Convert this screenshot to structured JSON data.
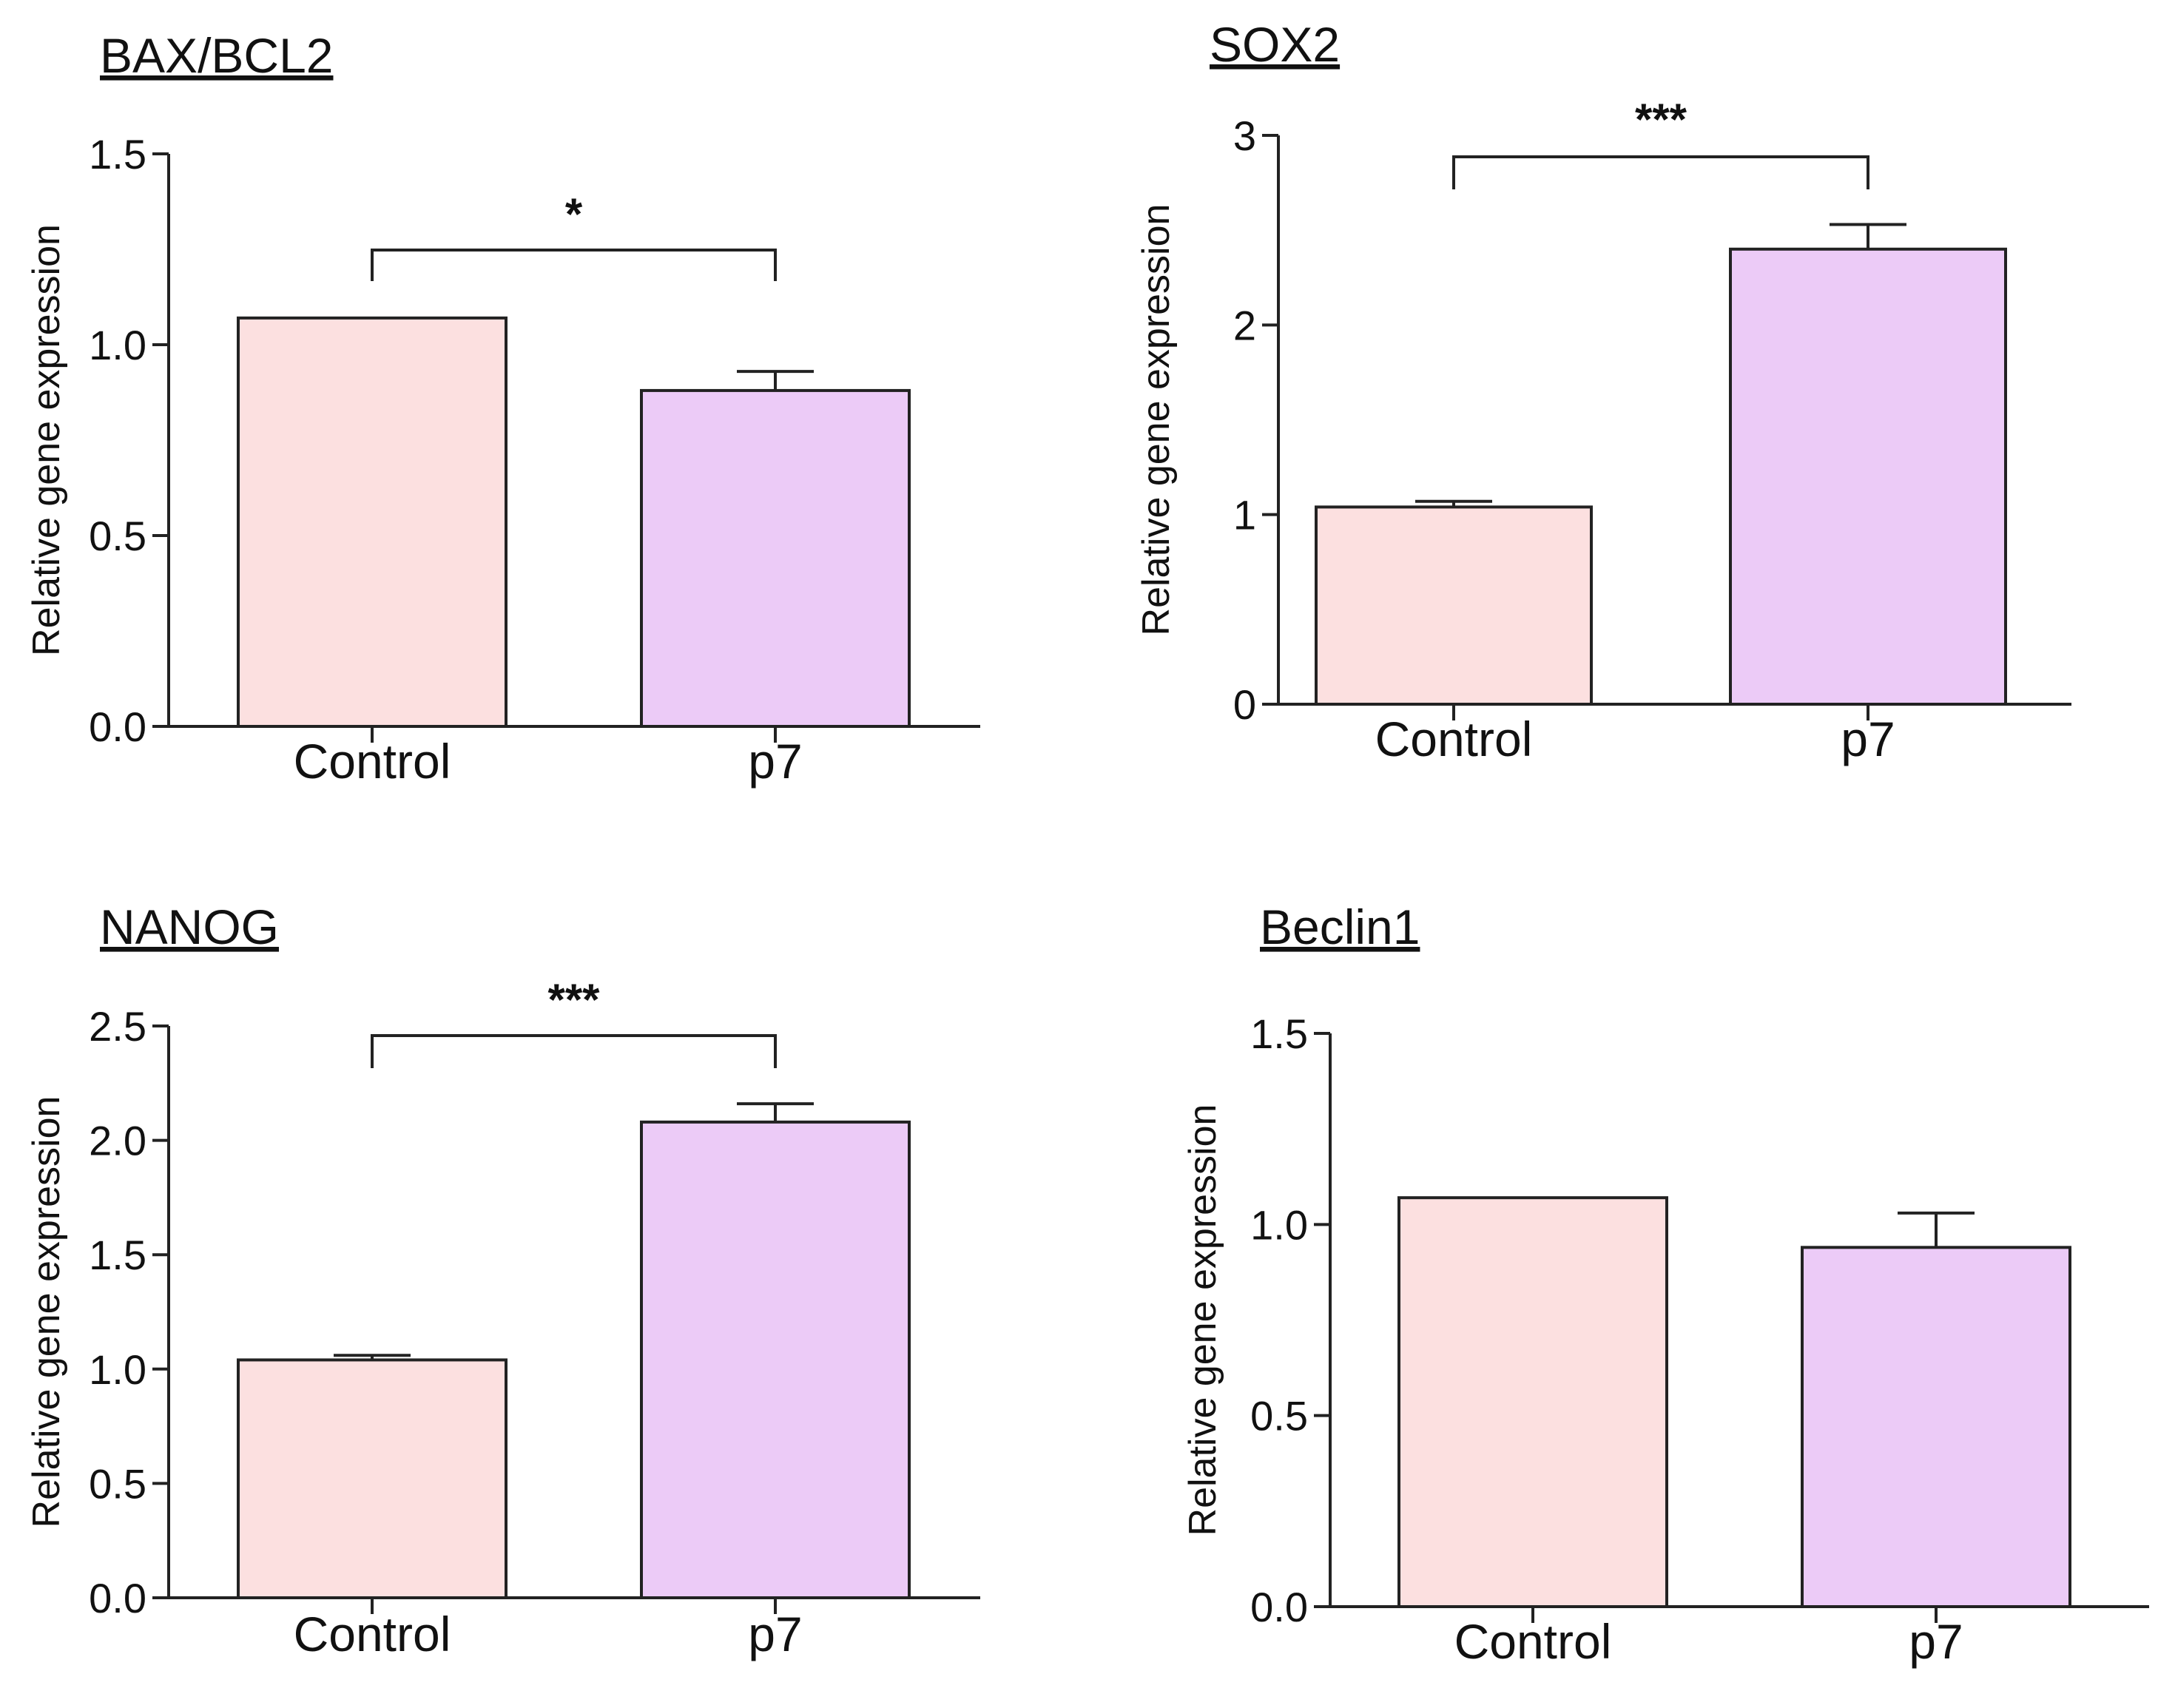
{
  "chart_data": [
    {
      "type": "bar",
      "title": "BAX/BCL2",
      "xlabel": "",
      "ylabel": "Relative gene expression",
      "categories": [
        "Control",
        "p7"
      ],
      "values": [
        1.07,
        0.88
      ],
      "errors": [
        0.0,
        0.05
      ],
      "ylim": [
        0,
        1.5
      ],
      "yticks": [
        "0.0",
        "0.5",
        "1.0",
        "1.5"
      ],
      "colors": [
        "#fce0e0",
        "#eccbf7"
      ],
      "significance": {
        "label": "*",
        "between": [
          0,
          1
        ]
      }
    },
    {
      "type": "bar",
      "title": "SOX2",
      "xlabel": "",
      "ylabel": "Relative gene expression",
      "categories": [
        "Control",
        "p7"
      ],
      "values": [
        1.04,
        2.4
      ],
      "errors": [
        0.03,
        0.13
      ],
      "ylim": [
        0,
        3
      ],
      "yticks": [
        "0",
        "1",
        "2",
        "3"
      ],
      "colors": [
        "#fce0e0",
        "#eccbf7"
      ],
      "significance": {
        "label": "***",
        "between": [
          0,
          1
        ]
      }
    },
    {
      "type": "bar",
      "title": "NANOG",
      "xlabel": "",
      "ylabel": "Relative gene expression",
      "categories": [
        "Control",
        "p7"
      ],
      "values": [
        1.04,
        2.08
      ],
      "errors": [
        0.02,
        0.08
      ],
      "ylim": [
        0,
        2.5
      ],
      "yticks": [
        "0.0",
        "0.5",
        "1.0",
        "1.5",
        "2.0",
        "2.5"
      ],
      "colors": [
        "#fce0e0",
        "#eccbf7"
      ],
      "significance": {
        "label": "***",
        "between": [
          0,
          1
        ]
      }
    },
    {
      "type": "bar",
      "title": "Beclin1",
      "xlabel": "",
      "ylabel": "Relative gene expression",
      "categories": [
        "Control",
        "p7"
      ],
      "values": [
        1.07,
        0.94
      ],
      "errors": [
        0.0,
        0.09
      ],
      "ylim": [
        0,
        1.5
      ],
      "yticks": [
        "0.0",
        "0.5",
        "1.0",
        "1.5"
      ],
      "colors": [
        "#fce0e0",
        "#eccbf7"
      ],
      "significance": null
    }
  ]
}
